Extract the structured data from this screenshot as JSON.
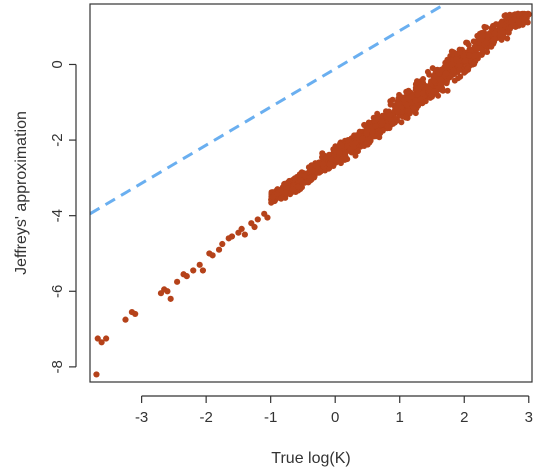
{
  "chart_data": {
    "type": "scatter",
    "title": "",
    "xlabel": "True log(K)",
    "ylabel": "Jeffreys' approximation",
    "xlim": [
      -3.8,
      3.05
    ],
    "ylim": [
      -8.4,
      1.6
    ],
    "xticks": [
      -3,
      -2,
      -1,
      0,
      1,
      2,
      3
    ],
    "yticks": [
      -8,
      -6,
      -4,
      -2,
      0
    ],
    "grid": false,
    "colors": {
      "points": "#b5421a",
      "reference_line": "#6aaff0",
      "axes": "#333333"
    },
    "reference_line": {
      "style": "dashed",
      "points": [
        [
          -3.8,
          -3.95
        ],
        [
          1.7,
          1.6
        ]
      ]
    },
    "band": {
      "x": [
        -1.0,
        3.0
      ],
      "center": [
        [
          -1.0,
          -3.55
        ],
        [
          -0.5,
          -3.05
        ],
        [
          0.0,
          -2.45
        ],
        [
          0.5,
          -1.85
        ],
        [
          1.0,
          -1.2
        ],
        [
          1.5,
          -0.55
        ],
        [
          2.0,
          0.15
        ],
        [
          2.5,
          0.85
        ],
        [
          3.0,
          1.35
        ]
      ],
      "halfwidth": [
        [
          -1.0,
          0.12
        ],
        [
          -0.5,
          0.18
        ],
        [
          0.0,
          0.2
        ],
        [
          0.5,
          0.26
        ],
        [
          1.0,
          0.3
        ],
        [
          1.5,
          0.32
        ],
        [
          2.0,
          0.32
        ],
        [
          2.5,
          0.3
        ],
        [
          3.0,
          0.2
        ]
      ],
      "ymax": 1.35
    },
    "points": [
      [
        -3.7,
        -8.2
      ],
      [
        -3.68,
        -7.25
      ],
      [
        -3.62,
        -7.35
      ],
      [
        -3.55,
        -7.25
      ],
      [
        -3.25,
        -6.75
      ],
      [
        -3.15,
        -6.55
      ],
      [
        -3.1,
        -6.6
      ],
      [
        -2.7,
        -6.05
      ],
      [
        -2.65,
        -5.95
      ],
      [
        -2.6,
        -6.0
      ],
      [
        -2.55,
        -6.2
      ],
      [
        -2.45,
        -5.75
      ],
      [
        -2.35,
        -5.55
      ],
      [
        -2.3,
        -5.6
      ],
      [
        -2.2,
        -5.45
      ],
      [
        -2.1,
        -5.3
      ],
      [
        -2.05,
        -5.45
      ],
      [
        -1.95,
        -5.0
      ],
      [
        -1.9,
        -5.05
      ],
      [
        -1.8,
        -4.9
      ],
      [
        -1.75,
        -4.75
      ],
      [
        -1.65,
        -4.6
      ],
      [
        -1.6,
        -4.55
      ],
      [
        -1.5,
        -4.45
      ],
      [
        -1.45,
        -4.35
      ],
      [
        -1.4,
        -4.5
      ],
      [
        -1.3,
        -4.2
      ],
      [
        -1.25,
        -4.3
      ],
      [
        -1.2,
        -4.1
      ],
      [
        -1.1,
        -3.95
      ],
      [
        -1.05,
        -4.05
      ],
      [
        -0.2,
        -2.35
      ],
      [
        0.05,
        -2.2
      ],
      [
        0.2,
        -2.0
      ],
      [
        0.45,
        -1.6
      ]
    ]
  }
}
